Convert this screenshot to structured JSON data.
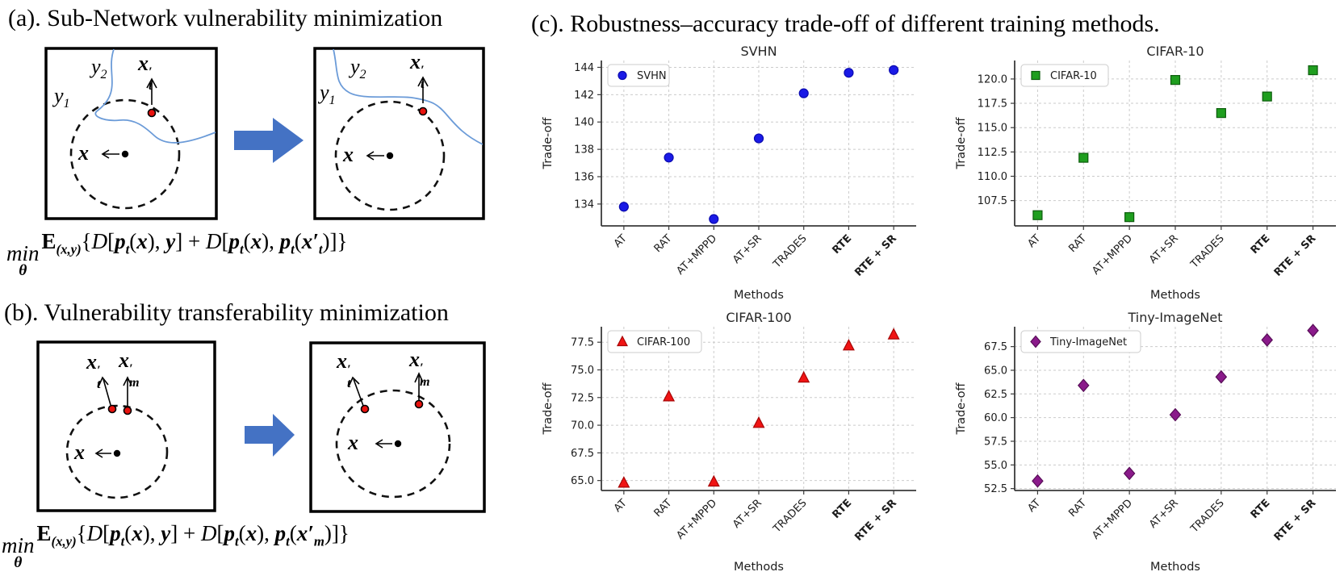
{
  "panel_a": {
    "heading": "(a). Sub-Network vulnerability minimization",
    "formula_tokens": [
      {
        "s": "stack",
        "v": "min",
        "u": "θ"
      },
      {
        "s": "e",
        "v": "E"
      },
      {
        "s": "subi",
        "v": "(x,y)"
      },
      {
        "s": "r",
        "v": "{"
      },
      {
        "s": "d",
        "v": "D"
      },
      {
        "s": "r",
        "v": "["
      },
      {
        "s": "bi",
        "v": "p"
      },
      {
        "s": "subi",
        "v": "t"
      },
      {
        "s": "r",
        "v": "("
      },
      {
        "s": "bi",
        "v": "x"
      },
      {
        "s": "r",
        "v": "), "
      },
      {
        "s": "bi",
        "v": "y"
      },
      {
        "s": "r",
        "v": "] + "
      },
      {
        "s": "d",
        "v": "D"
      },
      {
        "s": "r",
        "v": "["
      },
      {
        "s": "bi",
        "v": "p"
      },
      {
        "s": "subi",
        "v": "t"
      },
      {
        "s": "r",
        "v": "("
      },
      {
        "s": "bi",
        "v": "x"
      },
      {
        "s": "r",
        "v": "), "
      },
      {
        "s": "bi",
        "v": "p"
      },
      {
        "s": "subi",
        "v": "t"
      },
      {
        "s": "r",
        "v": "("
      },
      {
        "s": "bi",
        "v": "x′"
      },
      {
        "s": "subi",
        "v": "t"
      },
      {
        "s": "r",
        "v": ")]}"
      }
    ]
  },
  "panel_b": {
    "heading": "(b). Vulnerability transferability  minimization",
    "formula_tokens": [
      {
        "s": "stack",
        "v": "min",
        "u": "θ"
      },
      {
        "s": "e",
        "v": "E"
      },
      {
        "s": "subi",
        "v": "(x,y)"
      },
      {
        "s": "r",
        "v": "{"
      },
      {
        "s": "d",
        "v": "D"
      },
      {
        "s": "r",
        "v": "["
      },
      {
        "s": "bi",
        "v": "p"
      },
      {
        "s": "subi",
        "v": "t"
      },
      {
        "s": "r",
        "v": "("
      },
      {
        "s": "bi",
        "v": "x"
      },
      {
        "s": "r",
        "v": "), "
      },
      {
        "s": "bi",
        "v": "y"
      },
      {
        "s": "r",
        "v": "] + "
      },
      {
        "s": "d",
        "v": "D"
      },
      {
        "s": "r",
        "v": "["
      },
      {
        "s": "bi",
        "v": "p"
      },
      {
        "s": "subi",
        "v": "t"
      },
      {
        "s": "r",
        "v": "("
      },
      {
        "s": "bi",
        "v": "x"
      },
      {
        "s": "r",
        "v": "), "
      },
      {
        "s": "bi",
        "v": "p"
      },
      {
        "s": "subi",
        "v": "t"
      },
      {
        "s": "r",
        "v": "("
      },
      {
        "s": "bi",
        "v": "x′"
      },
      {
        "s": "subi",
        "v": "m"
      },
      {
        "s": "r",
        "v": ")]}"
      }
    ]
  },
  "panel_c": {
    "heading": "(c). Robustness–accuracy trade-off of different training methods."
  },
  "diagram_labels": {
    "y1": {
      "base": "y",
      "sub": "1"
    },
    "y2": {
      "base": "y",
      "sub": "2"
    },
    "xt": {
      "base": "x",
      "prime": "′",
      "sub": "t"
    },
    "xm": {
      "base": "x",
      "prime": "′",
      "sub": "m"
    },
    "x": {
      "base": "x"
    }
  },
  "colors": {
    "boundary_blue": "#6b9bd8",
    "arrow_blue": "#4472c4",
    "arrow_blue_edge": "#35538f",
    "adv_point_red": "#e8120e",
    "svhn_blue": "#1a1ae6",
    "cifar10_green": "#1f9e1f",
    "cifar100_red": "#f01414",
    "tiny_purple": "#8a1a8a"
  },
  "chart_data": [
    {
      "id": "svhn",
      "type": "scatter",
      "title": "SVHN",
      "legend": "SVHN",
      "legend_position": "upper left",
      "marker": "circle",
      "color": "#1a1ae6",
      "edge_color": "#0b0bb0",
      "xlabel": "Methods",
      "ylabel": "Trade-off",
      "categories": [
        "AT",
        "RAT",
        "AT+MPPD",
        "AT+SR",
        "TRADES",
        "RTE",
        "RTE + SR"
      ],
      "bold_categories": [
        "RTE",
        "RTE + SR"
      ],
      "values": [
        133.8,
        137.4,
        132.9,
        138.8,
        142.1,
        143.6,
        143.8
      ],
      "yticks": [
        134,
        136,
        138,
        140,
        142,
        144
      ],
      "ytick_labels": [
        "134",
        "136",
        "138",
        "140",
        "142",
        "144"
      ],
      "ylim": [
        132.4,
        144.5
      ],
      "grid": true
    },
    {
      "id": "cifar10",
      "type": "scatter",
      "title": "CIFAR-10",
      "legend": "CIFAR-10",
      "legend_position": "upper left",
      "marker": "square",
      "color": "#1f9e1f",
      "edge_color": "#0c5c0c",
      "xlabel": "Methods",
      "ylabel": "Trade-off",
      "categories": [
        "AT",
        "RAT",
        "AT+MPPD",
        "AT+SR",
        "TRADES",
        "RTE",
        "RTE + SR"
      ],
      "bold_categories": [
        "RTE",
        "RTE + SR"
      ],
      "values": [
        106.0,
        111.9,
        105.8,
        119.9,
        116.5,
        118.2,
        120.9
      ],
      "yticks": [
        107.5,
        110,
        112.5,
        115,
        117.5,
        120
      ],
      "ytick_labels": [
        "107.5",
        "110.0",
        "112.5",
        "115.0",
        "117.5",
        "120.0"
      ],
      "ylim": [
        104.9,
        121.9
      ],
      "grid": true
    },
    {
      "id": "cifar100",
      "type": "scatter",
      "title": "CIFAR-100",
      "legend": "CIFAR-100",
      "legend_position": "upper left",
      "marker": "triangle",
      "color": "#f01414",
      "edge_color": "#a80606",
      "xlabel": "Methods",
      "ylabel": "Trade-off",
      "categories": [
        "AT",
        "RAT",
        "AT+MPPD",
        "AT+SR",
        "TRADES",
        "RTE",
        "RTE + SR"
      ],
      "bold_categories": [
        "RTE",
        "RTE + SR"
      ],
      "values": [
        64.8,
        72.6,
        64.9,
        70.2,
        74.3,
        77.2,
        78.2
      ],
      "yticks": [
        65,
        67.5,
        70,
        72.5,
        75,
        77.5
      ],
      "ytick_labels": [
        "65.0",
        "67.5",
        "70.0",
        "72.5",
        "75.0",
        "77.5"
      ],
      "ylim": [
        64.1,
        78.9
      ],
      "grid": true
    },
    {
      "id": "tiny",
      "type": "scatter",
      "title": "Tiny-ImageNet",
      "legend": "Tiny-ImageNet",
      "legend_position": "upper left",
      "marker": "diamond",
      "color": "#8a1a8a",
      "edge_color": "#570d57",
      "xlabel": "Methods",
      "ylabel": "Trade-off",
      "categories": [
        "AT",
        "RAT",
        "AT+MPPD",
        "AT+SR",
        "TRADES",
        "RTE",
        "RTE + SR"
      ],
      "bold_categories": [
        "RTE",
        "RTE + SR"
      ],
      "values": [
        53.3,
        63.4,
        54.1,
        60.3,
        64.3,
        68.2,
        69.2
      ],
      "yticks": [
        52.5,
        55,
        57.5,
        60,
        62.5,
        65,
        67.5
      ],
      "ytick_labels": [
        "52.5",
        "55.0",
        "57.5",
        "60.0",
        "62.5",
        "65.0",
        "67.5"
      ],
      "ylim": [
        52.3,
        69.6
      ],
      "grid": true
    }
  ]
}
